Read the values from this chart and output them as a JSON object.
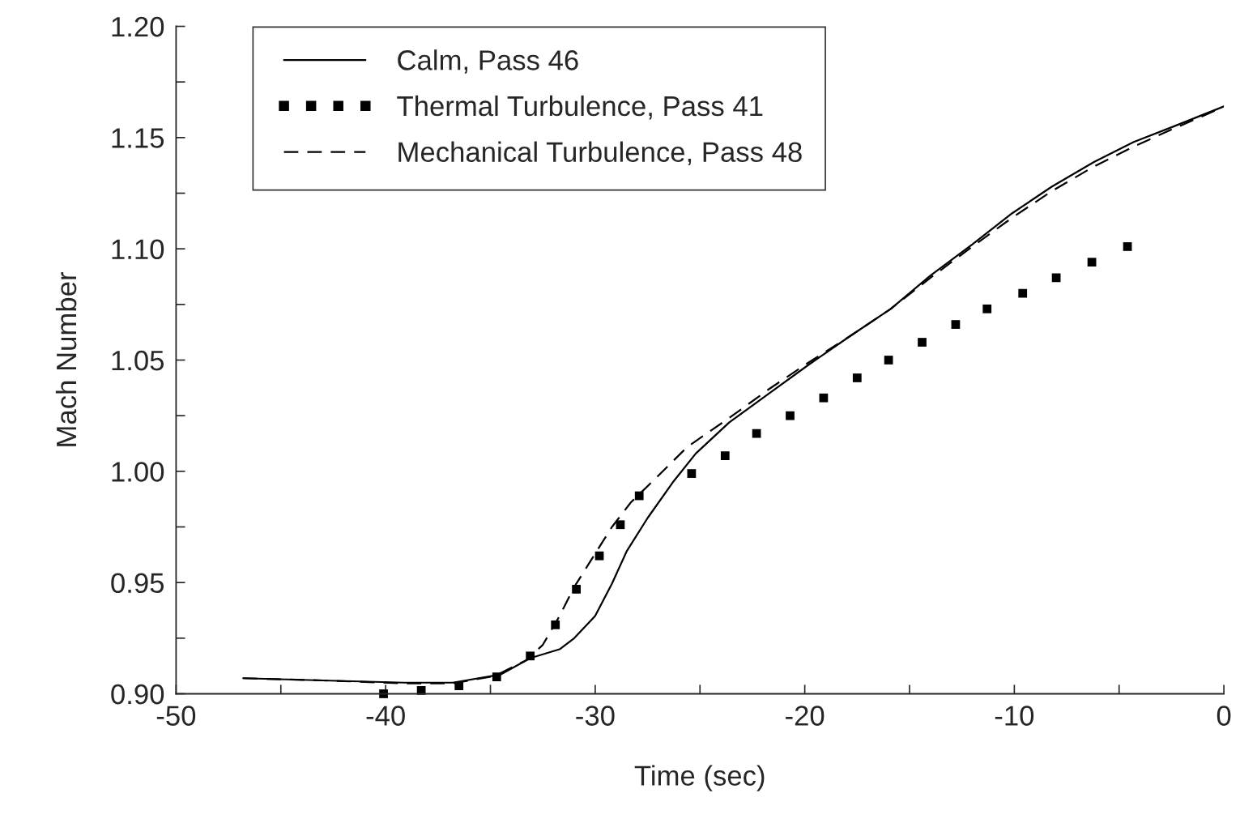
{
  "chart_data": {
    "type": "line",
    "xlabel": "Time (sec)",
    "ylabel": "Mach Number",
    "xlim": [
      -50,
      0
    ],
    "ylim": [
      0.9,
      1.2
    ],
    "xticks": [
      -50,
      {
        "value": -45,
        "label": null
      },
      -40,
      {
        "value": -35,
        "label": null
      },
      -30,
      {
        "value": -25,
        "label": null
      },
      -20,
      {
        "value": -15,
        "label": null
      },
      -10,
      {
        "value": -5,
        "label": null
      },
      0
    ],
    "yticks": [
      {
        "value": 0.9,
        "label": "0.90"
      },
      {
        "value": 0.925,
        "label": null
      },
      {
        "value": 0.95,
        "label": "0.95"
      },
      {
        "value": 0.975,
        "label": null
      },
      {
        "value": 1.0,
        "label": "1.00"
      },
      {
        "value": 1.025,
        "label": null
      },
      {
        "value": 1.05,
        "label": "1.05"
      },
      {
        "value": 1.075,
        "label": null
      },
      {
        "value": 1.1,
        "label": "1.10"
      },
      {
        "value": 1.125,
        "label": null
      },
      {
        "value": 1.15,
        "label": "1.15"
      },
      {
        "value": 1.175,
        "label": null
      },
      {
        "value": 1.2,
        "label": "1.20"
      }
    ],
    "legend": "top left",
    "grid": false,
    "series": [
      {
        "name": "Calm, Pass 46",
        "line_style": "solid",
        "color": "#000000",
        "x": [
          -46.8,
          -43.0,
          -39.1,
          -36.8,
          -34.5,
          -33.1,
          -31.7,
          -31.0,
          -30.0,
          -29.2,
          -28.5,
          -27.5,
          -26.3,
          -25.2,
          -23.6,
          -21.7,
          -19.8,
          -17.8,
          -15.9,
          -14.0,
          -12.0,
          -10.1,
          -8.2,
          -6.2,
          -4.3,
          -2.4,
          0
        ],
        "values": [
          0.907,
          0.906,
          0.905,
          0.905,
          0.9087,
          0.916,
          0.92,
          0.925,
          0.935,
          0.9495,
          0.964,
          0.979,
          0.995,
          1.008,
          1.022,
          1.035,
          1.048,
          1.061,
          1.073,
          1.088,
          1.102,
          1.116,
          1.128,
          1.139,
          1.148,
          1.155,
          1.164
        ]
      },
      {
        "name": "Thermal Turbulence, Pass 41",
        "type": "scatter",
        "marker": "square",
        "color": "#000000",
        "x": [
          -40.1,
          -38.3,
          -36.5,
          -34.7,
          -33.1,
          -31.9,
          -30.9,
          -29.8,
          -28.8,
          -27.9,
          -25.4,
          -23.8,
          -22.3,
          -20.7,
          -19.1,
          -17.5,
          -16.0,
          -14.4,
          -12.8,
          -11.3,
          -9.6,
          -8.0,
          -6.3,
          -4.6
        ],
        "values": [
          0.9,
          0.9015,
          0.9036,
          0.9076,
          0.917,
          0.931,
          0.947,
          0.962,
          0.976,
          0.989,
          0.999,
          1.007,
          1.017,
          1.025,
          1.033,
          1.042,
          1.05,
          1.058,
          1.066,
          1.073,
          1.08,
          1.087,
          1.094,
          1.101
        ]
      },
      {
        "name": "Mechanical Turbulence, Pass 48",
        "line_style": "dashed",
        "color": "#000000",
        "x": [
          -46.8,
          -43.0,
          -39.1,
          -36.8,
          -34.8,
          -33.3,
          -32.5,
          -31.7,
          -31.0,
          -30.2,
          -29.2,
          -28.3,
          -27.1,
          -25.6,
          -23.6,
          -21.7,
          -19.8,
          -17.8,
          -15.9,
          -14.0,
          -12.0,
          -10.1,
          -8.2,
          -6.2,
          -4.3,
          -2.4,
          -0.2
        ],
        "values": [
          0.907,
          0.906,
          0.9047,
          0.9047,
          0.908,
          0.915,
          0.922,
          0.935,
          0.948,
          0.96,
          0.975,
          0.986,
          0.997,
          1.011,
          1.024,
          1.037,
          1.049,
          1.061,
          1.073,
          1.087,
          1.101,
          1.114,
          1.126,
          1.137,
          1.146,
          1.154,
          1.163
        ]
      }
    ]
  }
}
